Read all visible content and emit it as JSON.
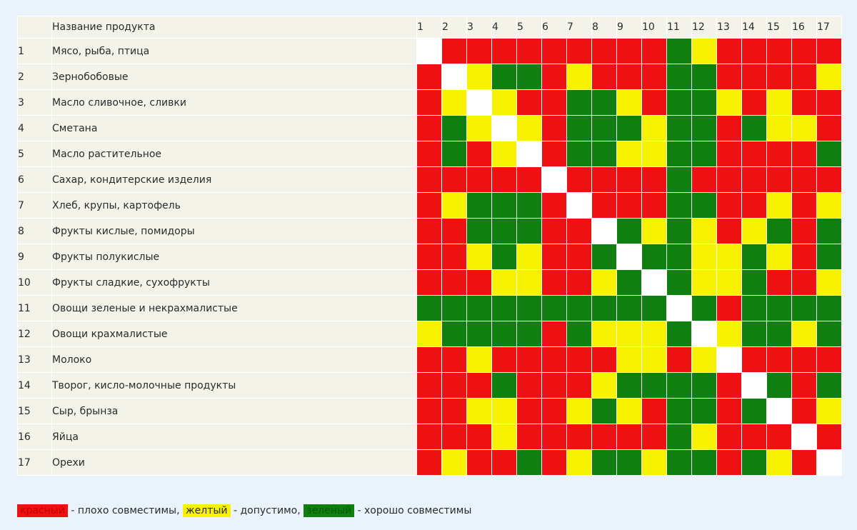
{
  "chart_data": {
    "type": "heatmap",
    "header": {
      "number": "",
      "name": "Название продукта"
    },
    "columns": [
      "1",
      "2",
      "3",
      "4",
      "5",
      "6",
      "7",
      "8",
      "9",
      "10",
      "11",
      "12",
      "13",
      "14",
      "15",
      "16",
      "17"
    ],
    "rows": [
      {
        "num": "1",
        "name": "Мясо, рыба, птица",
        "values": [
          "w",
          "r",
          "r",
          "r",
          "r",
          "r",
          "r",
          "r",
          "r",
          "r",
          "g",
          "y",
          "r",
          "r",
          "r",
          "r",
          "r"
        ]
      },
      {
        "num": "2",
        "name": "Зернобобовые",
        "values": [
          "r",
          "w",
          "y",
          "g",
          "g",
          "r",
          "y",
          "r",
          "r",
          "r",
          "g",
          "g",
          "r",
          "r",
          "r",
          "r",
          "y"
        ]
      },
      {
        "num": "3",
        "name": "Масло сливочное, сливки",
        "values": [
          "r",
          "y",
          "w",
          "y",
          "r",
          "r",
          "g",
          "g",
          "y",
          "r",
          "g",
          "g",
          "y",
          "r",
          "y",
          "r",
          "r"
        ]
      },
      {
        "num": "4",
        "name": "Сметана",
        "values": [
          "r",
          "g",
          "y",
          "w",
          "y",
          "r",
          "g",
          "g",
          "g",
          "y",
          "g",
          "g",
          "r",
          "g",
          "y",
          "y",
          "r"
        ]
      },
      {
        "num": "5",
        "name": "Масло растительное",
        "values": [
          "r",
          "g",
          "r",
          "y",
          "w",
          "r",
          "g",
          "g",
          "y",
          "y",
          "g",
          "g",
          "r",
          "r",
          "r",
          "r",
          "g"
        ]
      },
      {
        "num": "6",
        "name": "Сахар, кондитерские изделия",
        "values": [
          "r",
          "r",
          "r",
          "r",
          "r",
          "w",
          "r",
          "r",
          "r",
          "r",
          "g",
          "r",
          "r",
          "r",
          "r",
          "r",
          "r"
        ]
      },
      {
        "num": "7",
        "name": "Хлеб, крупы, картофель",
        "values": [
          "r",
          "y",
          "g",
          "g",
          "g",
          "r",
          "w",
          "r",
          "r",
          "r",
          "g",
          "g",
          "r",
          "r",
          "y",
          "r",
          "y"
        ]
      },
      {
        "num": "8",
        "name": "Фрукты кислые, помидоры",
        "values": [
          "r",
          "r",
          "g",
          "g",
          "g",
          "r",
          "r",
          "w",
          "g",
          "y",
          "g",
          "y",
          "r",
          "y",
          "g",
          "r",
          "g"
        ]
      },
      {
        "num": "9",
        "name": "Фрукты полукислые",
        "values": [
          "r",
          "r",
          "y",
          "g",
          "y",
          "r",
          "r",
          "g",
          "w",
          "g",
          "g",
          "y",
          "y",
          "g",
          "y",
          "r",
          "g"
        ]
      },
      {
        "num": "10",
        "name": "Фрукты сладкие, сухофрукты",
        "values": [
          "r",
          "r",
          "r",
          "y",
          "y",
          "r",
          "r",
          "y",
          "g",
          "w",
          "g",
          "y",
          "y",
          "g",
          "r",
          "r",
          "y"
        ]
      },
      {
        "num": "11",
        "name": "Овощи зеленые и некрахмалистые",
        "values": [
          "g",
          "g",
          "g",
          "g",
          "g",
          "g",
          "g",
          "g",
          "g",
          "g",
          "w",
          "g",
          "r",
          "g",
          "g",
          "g",
          "g"
        ]
      },
      {
        "num": "12",
        "name": "Овощи крахмалистые",
        "values": [
          "y",
          "g",
          "g",
          "g",
          "g",
          "r",
          "g",
          "y",
          "y",
          "y",
          "g",
          "w",
          "y",
          "g",
          "g",
          "y",
          "g"
        ]
      },
      {
        "num": "13",
        "name": "Молоко",
        "values": [
          "r",
          "r",
          "y",
          "r",
          "r",
          "r",
          "r",
          "r",
          "y",
          "y",
          "r",
          "y",
          "w",
          "r",
          "r",
          "r",
          "r"
        ]
      },
      {
        "num": "14",
        "name": "Творог, кисло-молочные продукты",
        "values": [
          "r",
          "r",
          "r",
          "g",
          "r",
          "r",
          "r",
          "y",
          "g",
          "g",
          "g",
          "g",
          "r",
          "w",
          "g",
          "r",
          "g"
        ]
      },
      {
        "num": "15",
        "name": "Сыр, брынза",
        "values": [
          "r",
          "r",
          "y",
          "y",
          "r",
          "r",
          "y",
          "g",
          "y",
          "r",
          "g",
          "g",
          "r",
          "g",
          "w",
          "r",
          "y"
        ]
      },
      {
        "num": "16",
        "name": "Яйца",
        "values": [
          "r",
          "r",
          "r",
          "y",
          "r",
          "r",
          "r",
          "r",
          "r",
          "r",
          "g",
          "y",
          "r",
          "r",
          "r",
          "w",
          "r"
        ]
      },
      {
        "num": "17",
        "name": "Орехи",
        "values": [
          "r",
          "y",
          "r",
          "r",
          "g",
          "r",
          "y",
          "g",
          "g",
          "y",
          "g",
          "g",
          "r",
          "g",
          "y",
          "r",
          "w"
        ]
      }
    ],
    "colors": {
      "r": "#ee1111",
      "y": "#f7f200",
      "g": "#0f800f",
      "w": "#ffffff"
    },
    "legend": {
      "red_word": "красный",
      "red_text": " - плохо совместимы, ",
      "yellow_word": "желтый",
      "yellow_text": " - допустимо, ",
      "green_word": "зеленый",
      "green_text": " - хорошо совместимы"
    },
    "legend_placement": "bottom-left"
  }
}
